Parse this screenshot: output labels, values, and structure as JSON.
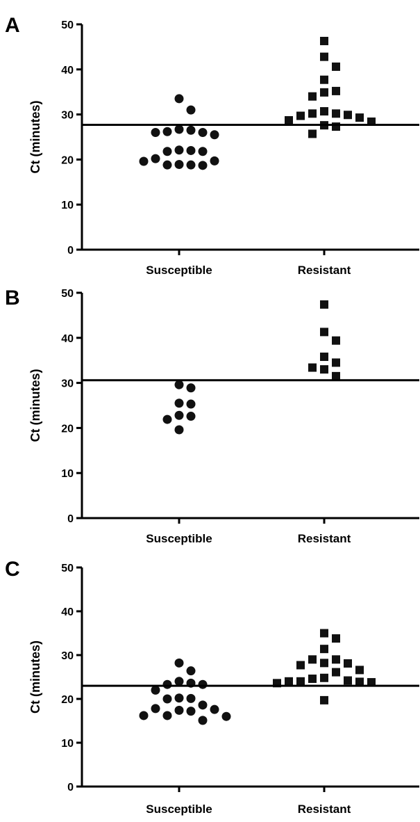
{
  "chart_data": [
    {
      "panel": "A",
      "type": "scatter",
      "ylabel": "Ct (minutes)",
      "ylim": [
        0,
        50
      ],
      "yticks": [
        0,
        10,
        20,
        30,
        40,
        50
      ],
      "categories": [
        "Susceptible",
        "Resistant"
      ],
      "threshold": 27.7,
      "series": [
        {
          "category": "Susceptible",
          "marker": "circle",
          "values": [
            33.5,
            31,
            26.5,
            26.2,
            26,
            26,
            26.7,
            25.5,
            22,
            21.8,
            21.8,
            22.1,
            20.2,
            19.6,
            18.8,
            18.7,
            18.8,
            18.9,
            19.7
          ]
        },
        {
          "category": "Resistant",
          "marker": "square",
          "values": [
            46.3,
            42.8,
            40.6,
            37.7,
            35.2,
            34,
            34.9,
            30.7,
            30.2,
            30.2,
            29.9,
            29.3,
            29.7,
            28.7,
            28.4,
            27.6,
            27.3,
            25.7
          ]
        }
      ]
    },
    {
      "panel": "B",
      "type": "scatter",
      "ylabel": "Ct (minutes)",
      "ylim": [
        0,
        50
      ],
      "yticks": [
        0,
        10,
        20,
        30,
        40,
        50
      ],
      "categories": [
        "Susceptible",
        "Resistant"
      ],
      "threshold": 30.6,
      "series": [
        {
          "category": "Susceptible",
          "marker": "circle",
          "values": [
            29.6,
            28.9,
            25.5,
            25.3,
            22.8,
            22.6,
            21.9,
            19.6
          ]
        },
        {
          "category": "Resistant",
          "marker": "square",
          "values": [
            47.4,
            41.3,
            39.4,
            35.8,
            34.5,
            33.4,
            33,
            31.5
          ]
        }
      ]
    },
    {
      "panel": "C",
      "type": "scatter",
      "ylabel": "Ct (minutes)",
      "ylim": [
        0,
        50
      ],
      "yticks": [
        0,
        10,
        20,
        30,
        40,
        50
      ],
      "categories": [
        "Susceptible",
        "Resistant"
      ],
      "threshold": 23,
      "series": [
        {
          "category": "Susceptible",
          "marker": "circle",
          "values": [
            28.2,
            26.4,
            24,
            23.6,
            23.3,
            23.3,
            22,
            20.2,
            20.1,
            20,
            18.6,
            17.8,
            17.6,
            17.4,
            17.2,
            16.2,
            16,
            16.2,
            15.1
          ]
        },
        {
          "category": "Resistant",
          "marker": "square",
          "values": [
            35,
            33.8,
            31.4,
            29,
            29,
            28.2,
            28.1,
            27.7,
            26.6,
            26.1,
            24.8,
            24.6,
            24.2,
            24,
            24,
            23.9,
            23.8,
            23.6,
            19.7
          ]
        }
      ]
    }
  ]
}
